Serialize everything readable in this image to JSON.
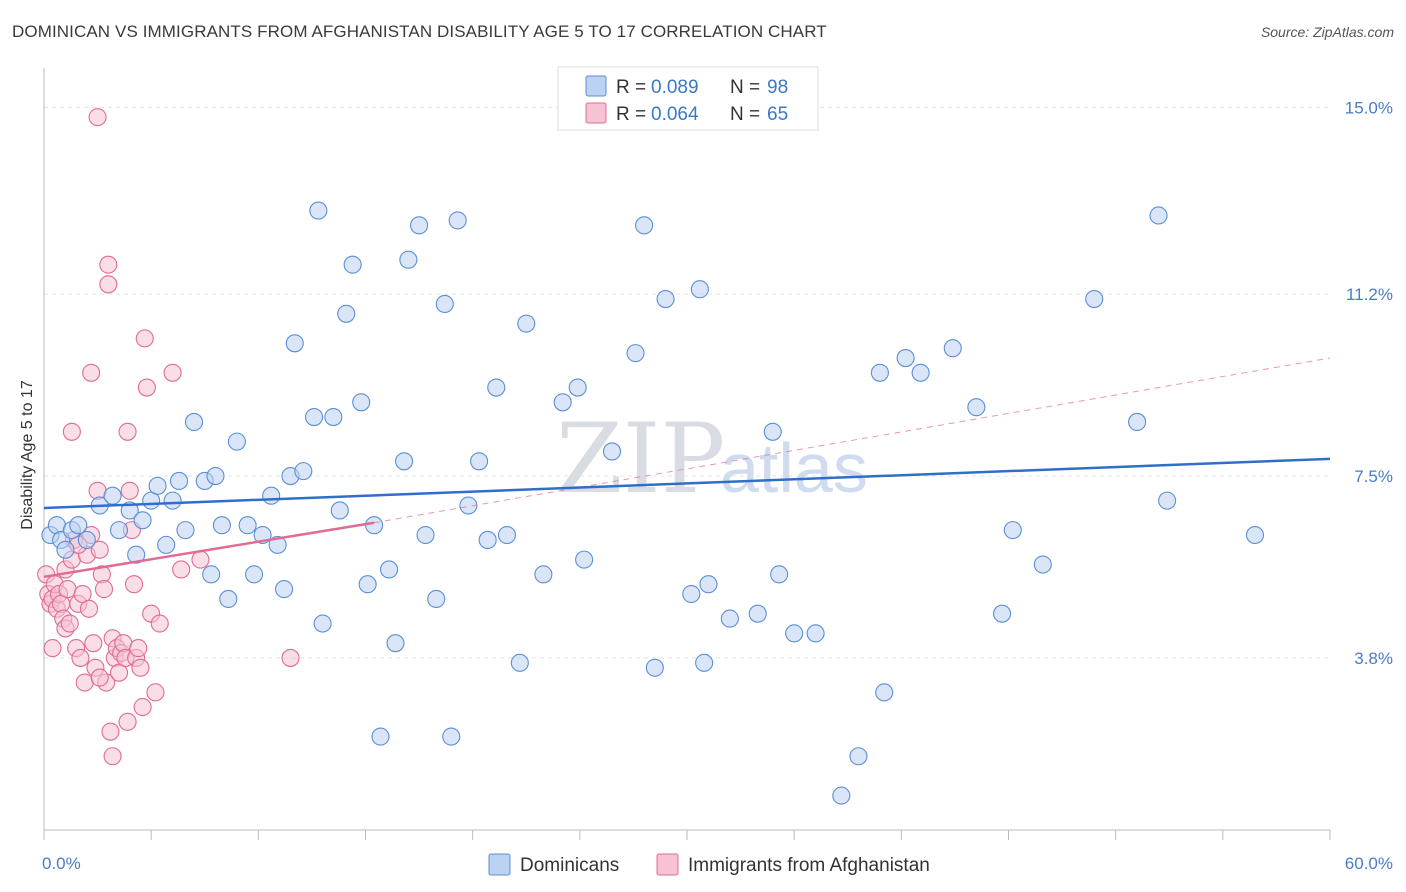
{
  "chart_data": {
    "type": "scatter",
    "title": "DOMINICAN VS IMMIGRANTS FROM AFGHANISTAN DISABILITY AGE 5 TO 17 CORRELATION CHART",
    "source": "Source: ZipAtlas.com",
    "ylabel": "Disability Age 5 to 17",
    "xlabel": "",
    "xlim": [
      0,
      60
    ],
    "ylim": [
      0.3,
      15.8
    ],
    "x_tick_labels": [
      {
        "value": 0,
        "label": "0.0%"
      },
      {
        "value": 60,
        "label": "60.0%"
      }
    ],
    "y_ticks": [
      {
        "value": 3.8,
        "label": "3.8%"
      },
      {
        "value": 7.5,
        "label": "7.5%"
      },
      {
        "value": 11.2,
        "label": "11.2%"
      },
      {
        "value": 15.0,
        "label": "15.0%"
      }
    ],
    "watermark": {
      "part1": "ZIP",
      "part2": "atlas"
    },
    "legend_box": [
      {
        "series": "Dominicans",
        "r_label": "R = ",
        "r_value": "0.089",
        "n_label": "N = ",
        "n_value": "98"
      },
      {
        "series": "Immigrants from Afghanistan",
        "r_label": "R = ",
        "r_value": "0.064",
        "n_label": "N = ",
        "n_value": "65"
      }
    ],
    "series": [
      {
        "name": "Dominicans",
        "color": "#5b8fd6",
        "fill": "#bcd2f2",
        "trend": {
          "x0": 0,
          "y0": 6.85,
          "x1": 60,
          "y1": 7.85
        },
        "points": [
          [
            0.3,
            6.3
          ],
          [
            0.6,
            6.5
          ],
          [
            0.8,
            6.2
          ],
          [
            1.0,
            6.0
          ],
          [
            1.3,
            6.4
          ],
          [
            1.6,
            6.5
          ],
          [
            2.0,
            6.2
          ],
          [
            2.6,
            6.9
          ],
          [
            3.2,
            7.1
          ],
          [
            3.5,
            6.4
          ],
          [
            4.0,
            6.8
          ],
          [
            4.3,
            5.9
          ],
          [
            4.6,
            6.6
          ],
          [
            5.0,
            7.0
          ],
          [
            5.3,
            7.3
          ],
          [
            5.7,
            6.1
          ],
          [
            6.0,
            7.0
          ],
          [
            6.3,
            7.4
          ],
          [
            6.6,
            6.4
          ],
          [
            7.0,
            8.6
          ],
          [
            7.5,
            7.4
          ],
          [
            7.8,
            5.5
          ],
          [
            8.0,
            7.5
          ],
          [
            8.3,
            6.5
          ],
          [
            8.6,
            5.0
          ],
          [
            9.0,
            8.2
          ],
          [
            9.5,
            6.5
          ],
          [
            9.8,
            5.5
          ],
          [
            10.2,
            6.3
          ],
          [
            10.6,
            7.1
          ],
          [
            10.9,
            6.1
          ],
          [
            11.2,
            5.2
          ],
          [
            11.5,
            7.5
          ],
          [
            11.7,
            10.2
          ],
          [
            12.1,
            7.6
          ],
          [
            12.6,
            8.7
          ],
          [
            12.8,
            12.9
          ],
          [
            13.0,
            4.5
          ],
          [
            13.5,
            8.7
          ],
          [
            13.8,
            6.8
          ],
          [
            14.1,
            10.8
          ],
          [
            14.4,
            11.8
          ],
          [
            14.8,
            9.0
          ],
          [
            15.1,
            5.3
          ],
          [
            15.4,
            6.5
          ],
          [
            15.7,
            2.2
          ],
          [
            16.1,
            5.6
          ],
          [
            16.4,
            4.1
          ],
          [
            16.8,
            7.8
          ],
          [
            17.0,
            11.9
          ],
          [
            17.5,
            12.6
          ],
          [
            17.8,
            6.3
          ],
          [
            18.3,
            5.0
          ],
          [
            18.7,
            11.0
          ],
          [
            19.0,
            2.2
          ],
          [
            19.3,
            12.7
          ],
          [
            19.8,
            6.9
          ],
          [
            20.3,
            7.8
          ],
          [
            20.7,
            6.2
          ],
          [
            21.1,
            9.3
          ],
          [
            21.6,
            6.3
          ],
          [
            22.2,
            3.7
          ],
          [
            22.5,
            10.6
          ],
          [
            23.3,
            5.5
          ],
          [
            24.2,
            9.0
          ],
          [
            24.9,
            9.3
          ],
          [
            25.2,
            5.8
          ],
          [
            26.5,
            8.0
          ],
          [
            27.6,
            10.0
          ],
          [
            28.0,
            12.6
          ],
          [
            28.5,
            3.6
          ],
          [
            29.0,
            11.1
          ],
          [
            30.2,
            5.1
          ],
          [
            30.6,
            11.3
          ],
          [
            30.8,
            3.7
          ],
          [
            31.0,
            5.3
          ],
          [
            32.0,
            4.6
          ],
          [
            33.3,
            4.7
          ],
          [
            34.0,
            8.4
          ],
          [
            34.3,
            5.5
          ],
          [
            35.0,
            4.3
          ],
          [
            38.0,
            1.8
          ],
          [
            39.0,
            9.6
          ],
          [
            39.2,
            3.1
          ],
          [
            40.2,
            9.9
          ],
          [
            40.9,
            9.6
          ],
          [
            42.4,
            10.1
          ],
          [
            43.5,
            8.9
          ],
          [
            44.7,
            4.7
          ],
          [
            45.2,
            6.4
          ],
          [
            46.6,
            5.7
          ],
          [
            49.0,
            11.1
          ],
          [
            51.0,
            8.6
          ],
          [
            52.0,
            12.8
          ],
          [
            52.4,
            7.0
          ],
          [
            56.5,
            6.3
          ],
          [
            37.2,
            1.0
          ],
          [
            36.0,
            4.3
          ]
        ]
      },
      {
        "name": "Immigrants from Afghanistan",
        "color": "#e06b95",
        "fill": "#f6c3d4",
        "trend": {
          "x0": 0,
          "y0": 5.45,
          "x1": 15.4,
          "y1": 6.55
        },
        "trend_dashed": {
          "x0": 15.4,
          "y0": 6.55,
          "x1": 60,
          "y1": 9.9
        },
        "points": [
          [
            0.1,
            5.5
          ],
          [
            0.2,
            5.1
          ],
          [
            0.3,
            4.9
          ],
          [
            0.4,
            5.0
          ],
          [
            0.5,
            5.3
          ],
          [
            0.6,
            4.8
          ],
          [
            0.7,
            5.1
          ],
          [
            0.8,
            4.9
          ],
          [
            0.9,
            4.6
          ],
          [
            1.0,
            5.6
          ],
          [
            1.0,
            4.4
          ],
          [
            1.1,
            5.2
          ],
          [
            1.2,
            4.5
          ],
          [
            1.3,
            5.8
          ],
          [
            1.4,
            6.2
          ],
          [
            1.5,
            4.0
          ],
          [
            1.6,
            4.9
          ],
          [
            1.7,
            3.8
          ],
          [
            1.8,
            5.1
          ],
          [
            1.9,
            3.3
          ],
          [
            2.0,
            5.9
          ],
          [
            2.1,
            4.8
          ],
          [
            2.2,
            6.3
          ],
          [
            2.3,
            4.1
          ],
          [
            2.4,
            3.6
          ],
          [
            2.5,
            7.2
          ],
          [
            2.6,
            6.0
          ],
          [
            2.7,
            5.5
          ],
          [
            2.8,
            5.2
          ],
          [
            2.9,
            3.3
          ],
          [
            3.0,
            11.8
          ],
          [
            3.1,
            2.3
          ],
          [
            3.2,
            4.2
          ],
          [
            3.3,
            3.8
          ],
          [
            3.4,
            4.0
          ],
          [
            3.5,
            3.5
          ],
          [
            3.6,
            3.9
          ],
          [
            3.7,
            4.1
          ],
          [
            3.8,
            3.8
          ],
          [
            3.9,
            2.5
          ],
          [
            4.0,
            7.2
          ],
          [
            4.1,
            6.4
          ],
          [
            4.2,
            5.3
          ],
          [
            4.3,
            3.8
          ],
          [
            4.4,
            4.0
          ],
          [
            4.5,
            3.6
          ],
          [
            4.6,
            2.8
          ],
          [
            4.7,
            10.3
          ],
          [
            4.8,
            9.3
          ],
          [
            5.0,
            4.7
          ],
          [
            5.2,
            3.1
          ],
          [
            5.4,
            4.5
          ],
          [
            6.0,
            9.6
          ],
          [
            6.4,
            5.6
          ],
          [
            7.3,
            5.8
          ],
          [
            11.5,
            3.8
          ],
          [
            2.5,
            14.8
          ],
          [
            3.0,
            11.4
          ],
          [
            2.2,
            9.6
          ],
          [
            1.3,
            8.4
          ],
          [
            1.6,
            6.1
          ],
          [
            0.4,
            4.0
          ],
          [
            2.6,
            3.4
          ],
          [
            3.2,
            1.8
          ],
          [
            3.9,
            8.4
          ]
        ]
      }
    ]
  }
}
